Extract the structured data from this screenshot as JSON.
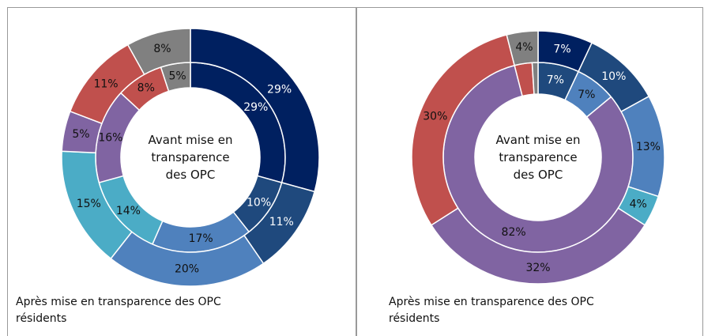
{
  "chart_data": [
    {
      "type": "donut",
      "series": [
        {
          "name": "Avant mise en transparence des OPC",
          "values": [
            29,
            10,
            17,
            14,
            16,
            8,
            5
          ],
          "value_labels": [
            "29%",
            "10%",
            "17%",
            "14%",
            "16%",
            "8%",
            "5%"
          ],
          "colors": [
            "#002060",
            "#1f497d",
            "#4f81bd",
            "#4bacc6",
            "#8064a2",
            "#c0504d",
            "#808080"
          ]
        },
        {
          "name": "Après mise en transparence des OPC résidents",
          "values": [
            29,
            11,
            20,
            15,
            5,
            11,
            8
          ],
          "value_labels": [
            "29%",
            "11%",
            "20%",
            "15%",
            "5%",
            "11%",
            "8%"
          ],
          "colors": [
            "#002060",
            "#1f497d",
            "#4f81bd",
            "#4bacc6",
            "#8064a2",
            "#c0504d",
            "#808080"
          ]
        }
      ]
    },
    {
      "type": "donut",
      "series": [
        {
          "name": "Avant mise en transparence des OPC",
          "values": [
            7,
            7,
            82,
            3,
            1
          ],
          "value_labels": [
            "7%",
            "7%",
            "82%",
            null,
            null
          ],
          "colors": [
            "#1f497d",
            "#4f81bd",
            "#8064a2",
            "#c0504d",
            "#808080"
          ]
        },
        {
          "name": "Après mise en transparence des OPC résidents",
          "values": [
            7,
            10,
            13,
            4,
            32,
            30,
            4
          ],
          "value_labels": [
            "7%",
            "10%",
            "13%",
            "4%",
            "32%",
            "30%",
            "4%"
          ],
          "colors": [
            "#002060",
            "#1f497d",
            "#4f81bd",
            "#4bacc6",
            "#8064a2",
            "#c0504d",
            "#808080"
          ]
        }
      ]
    }
  ]
}
